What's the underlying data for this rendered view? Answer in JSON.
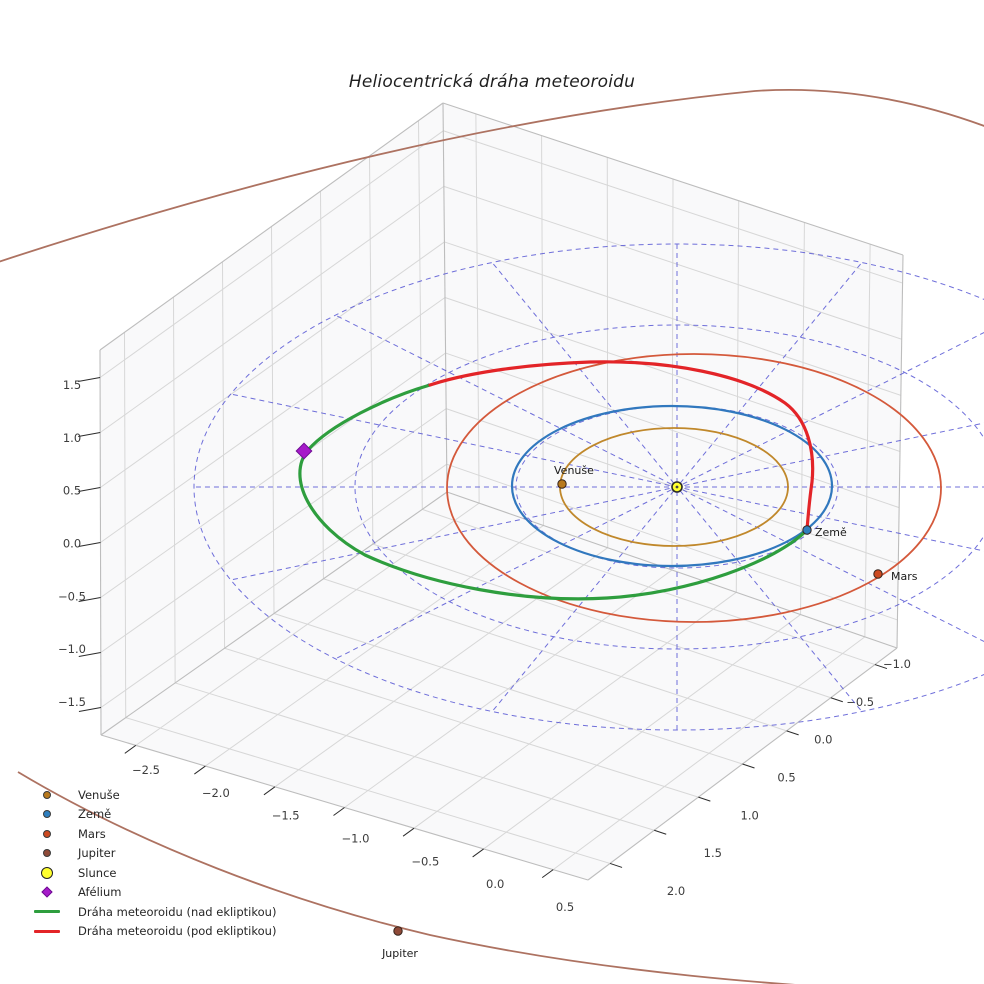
{
  "title": "Heliocentrická dráha meteoroidu",
  "axes": {
    "x_ticks": [
      {
        "v": -2.5,
        "label": "−2.5"
      },
      {
        "v": -2.0,
        "label": "−2.0"
      },
      {
        "v": -1.5,
        "label": "−1.5"
      },
      {
        "v": -1.0,
        "label": "−1.0"
      },
      {
        "v": -0.5,
        "label": "−0.5"
      },
      {
        "v": 0.0,
        "label": "0.0"
      },
      {
        "v": 0.5,
        "label": "0.5"
      }
    ],
    "y_ticks": [
      {
        "v": -1.0,
        "label": "−1.0"
      },
      {
        "v": -0.5,
        "label": "−0.5"
      },
      {
        "v": 0.0,
        "label": "0.0"
      },
      {
        "v": 0.5,
        "label": "0.5"
      },
      {
        "v": 1.0,
        "label": "1.0"
      },
      {
        "v": 1.5,
        "label": "1.5"
      },
      {
        "v": 2.0,
        "label": "2.0"
      }
    ],
    "z_ticks": [
      {
        "v": 1.5,
        "label": "1.5"
      },
      {
        "v": 1.0,
        "label": "1.0"
      },
      {
        "v": 0.5,
        "label": "0.5"
      },
      {
        "v": 0.0,
        "label": "0.0"
      },
      {
        "v": -0.5,
        "label": "−0.5"
      },
      {
        "v": -1.0,
        "label": "−1.0"
      },
      {
        "v": -1.5,
        "label": "−1.5"
      }
    ],
    "x_range": [
      -2.75,
      0.75
    ],
    "y_range": [
      -1.25,
      2.25
    ],
    "z_range": [
      -1.75,
      1.75
    ]
  },
  "bodies": [
    {
      "name": "venus",
      "label": "Venuše"
    },
    {
      "name": "earth",
      "label": "Země"
    },
    {
      "name": "mars",
      "label": "Mars"
    },
    {
      "name": "jupiter",
      "label": "Jupiter"
    }
  ],
  "legend": {
    "items": [
      {
        "label": "Venuše",
        "marker": "dot",
        "color": "#b8791d"
      },
      {
        "label": "Země",
        "marker": "dot",
        "color": "#2e7fbf"
      },
      {
        "label": "Mars",
        "marker": "dot",
        "color": "#cc4a21"
      },
      {
        "label": "Jupiter",
        "marker": "dot",
        "color": "#8f4a38"
      },
      {
        "label": "Slunce",
        "marker": "dot-big",
        "color": "#ffff2e"
      },
      {
        "label": "Afélium",
        "marker": "diamond",
        "color": "#a61bc9"
      },
      {
        "label": "Dráha meteoroidu (nad ekliptikou)",
        "marker": "line",
        "color": "#2e9e3e"
      },
      {
        "label": "Dráha meteoroidu (pod ekliptikou)",
        "marker": "line",
        "color": "#e32428"
      }
    ]
  },
  "colors": {
    "venus_orbit": "#c0882b",
    "earth_orbit": "#3178be",
    "mars_orbit": "#d4593b",
    "jupiter_orbit": "#ad7261",
    "venus_dot": "#b8791d",
    "earth_dot": "#2e7fbf",
    "mars_dot": "#cc4a21",
    "jupiter_dot": "#8f4a38",
    "sun_fill": "#ffff2e",
    "sun_edge": "#2a2a2a",
    "meteoroid_above": "#2e9e3e",
    "meteoroid_below": "#e32428",
    "aphelion": "#a61bc9",
    "aphelion_edge": "#6d0d92",
    "ecliptic_grid": "#4c4cd2",
    "pane_grid": "#d7d7d7",
    "pane_edge": "#bdbdbd",
    "pane_fill": "#f4f4f6"
  },
  "chart_data": {
    "type": "line",
    "projection": "3d",
    "title": "Heliocentrická dráha meteoroidu",
    "xlim": [
      -2.75,
      0.75
    ],
    "ylim": [
      -1.25,
      2.25
    ],
    "zlim": [
      -1.75,
      1.75
    ],
    "x_tick_labels": [
      "−2.5",
      "−2.0",
      "−1.5",
      "−1.0",
      "−0.5",
      "0.0",
      "0.5"
    ],
    "y_tick_labels": [
      "−1.0",
      "−0.5",
      "0.0",
      "0.5",
      "1.0",
      "1.5",
      "2.0"
    ],
    "z_tick_labels": [
      "1.5",
      "1.0",
      "0.5",
      "0.0",
      "−0.5",
      "−1.0",
      "−1.5"
    ],
    "grid": "ecliptic polar grid, dashed blue, rings at r = 1, 2, 3 AU with 16 radial spokes",
    "legend_position": "lower left",
    "series": [
      {
        "name": "Venuše orbit",
        "style": "solid",
        "color": "#c0882b",
        "approx_radius_au": 0.72
      },
      {
        "name": "Země orbit",
        "style": "solid",
        "color": "#3178be",
        "approx_radius_au": 1.0
      },
      {
        "name": "Mars orbit",
        "style": "solid",
        "color": "#d4593b",
        "approx_radius_au": 1.52
      },
      {
        "name": "Jupiter orbit",
        "style": "solid",
        "color": "#ad7261",
        "approx_radius_au": 5.2
      },
      {
        "name": "Dráha meteoroidu (nad ekliptikou)",
        "style": "solid-thick",
        "color": "#2e9e3e"
      },
      {
        "name": "Dráha meteoroidu (pod ekliptikou)",
        "style": "solid-thick",
        "color": "#e32428"
      }
    ],
    "points": [
      {
        "name": "Slunce",
        "marker": "circle",
        "color": "#ffff2e",
        "approx_position_au_xy": [
          0,
          0
        ]
      },
      {
        "name": "Venuše",
        "marker": "circle",
        "color": "#b8791d",
        "approx_position_au_xy": [
          -0.66,
          0.32
        ]
      },
      {
        "name": "Země",
        "marker": "circle",
        "color": "#2e7fbf",
        "approx_position_au_xy": [
          0.96,
          0.08
        ]
      },
      {
        "name": "Mars",
        "marker": "circle",
        "color": "#cc4a21",
        "approx_position_au_xy": [
          1.48,
          0.18
        ]
      },
      {
        "name": "Jupiter",
        "marker": "circle",
        "color": "#8f4a38",
        "approx_position_au_xy": [
          0.83,
          5.3
        ]
      },
      {
        "name": "Afélium",
        "marker": "diamond",
        "color": "#a61bc9",
        "approx_position_au_xy": [
          -2.2,
          0.87
        ]
      }
    ]
  }
}
